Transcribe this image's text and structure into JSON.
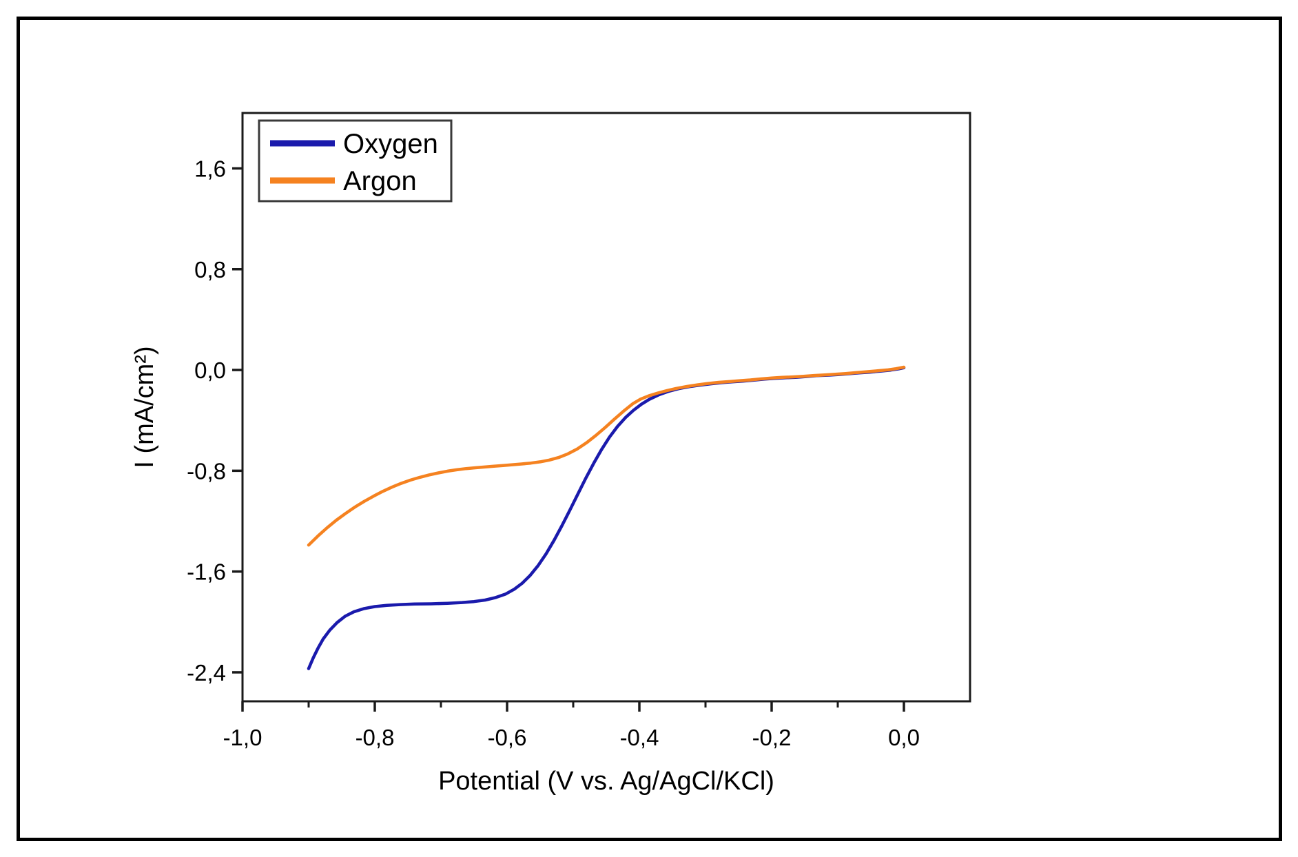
{
  "figure": {
    "background_color": "#ffffff",
    "border_color": "#000000",
    "frame_color": "#1a1a1a",
    "text_color": "#000000",
    "legend_border_color": "#3a3a3a"
  },
  "chart_data": {
    "type": "line",
    "title": "",
    "xlabel": "Potential (V vs. Ag/AgCl/KCl)",
    "ylabel": "I (mA/cm²)",
    "xlim": [
      -1.0,
      0.1
    ],
    "ylim": [
      -2.63,
      2.04
    ],
    "grid": false,
    "decimal_separator": ",",
    "x_ticks": {
      "major": [
        -1.0,
        -0.8,
        -0.6,
        -0.4,
        -0.2,
        0.0
      ],
      "labels": [
        "-1,0",
        "-0,8",
        "-0,6",
        "-0,4",
        "-0,2",
        "0,0"
      ],
      "minor": [
        -0.9,
        -0.7,
        -0.5,
        -0.3,
        -0.1
      ]
    },
    "y_ticks": {
      "major": [
        1.6,
        0.8,
        0.0,
        -0.8,
        -1.6,
        -2.4
      ],
      "labels": [
        "1,6",
        "0,8",
        "0,0",
        "-0,8",
        "-1,6",
        "-2,4"
      ],
      "minor": []
    },
    "legend": {
      "position": "top-left",
      "entries": [
        {
          "label": "Oxygen",
          "color": "#1a1aac"
        },
        {
          "label": "Argon",
          "color": "#f58220"
        }
      ]
    },
    "series": [
      {
        "name": "Oxygen",
        "color": "#1a1aac",
        "points": [
          [
            -0.9,
            -2.37
          ],
          [
            -0.893,
            -2.285
          ],
          [
            -0.886,
            -2.21
          ],
          [
            -0.878,
            -2.135
          ],
          [
            -0.868,
            -2.065
          ],
          [
            -0.857,
            -2.005
          ],
          [
            -0.845,
            -1.955
          ],
          [
            -0.832,
            -1.92
          ],
          [
            -0.817,
            -1.895
          ],
          [
            -0.8,
            -1.878
          ],
          [
            -0.782,
            -1.868
          ],
          [
            -0.762,
            -1.862
          ],
          [
            -0.74,
            -1.858
          ],
          [
            -0.715,
            -1.856
          ],
          [
            -0.69,
            -1.852
          ],
          [
            -0.668,
            -1.846
          ],
          [
            -0.65,
            -1.838
          ],
          [
            -0.633,
            -1.826
          ],
          [
            -0.617,
            -1.806
          ],
          [
            -0.602,
            -1.778
          ],
          [
            -0.589,
            -1.74
          ],
          [
            -0.577,
            -1.692
          ],
          [
            -0.565,
            -1.63
          ],
          [
            -0.553,
            -1.552
          ],
          [
            -0.541,
            -1.46
          ],
          [
            -0.529,
            -1.352
          ],
          [
            -0.517,
            -1.235
          ],
          [
            -0.505,
            -1.112
          ],
          [
            -0.493,
            -0.985
          ],
          [
            -0.481,
            -0.86
          ],
          [
            -0.469,
            -0.74
          ],
          [
            -0.457,
            -0.63
          ],
          [
            -0.445,
            -0.532
          ],
          [
            -0.433,
            -0.448
          ],
          [
            -0.421,
            -0.378
          ],
          [
            -0.409,
            -0.32
          ],
          [
            -0.397,
            -0.272
          ],
          [
            -0.385,
            -0.233
          ],
          [
            -0.37,
            -0.196
          ],
          [
            -0.355,
            -0.168
          ],
          [
            -0.34,
            -0.148
          ],
          [
            -0.324,
            -0.132
          ],
          [
            -0.308,
            -0.12
          ],
          [
            -0.292,
            -0.11
          ],
          [
            -0.276,
            -0.101
          ],
          [
            -0.26,
            -0.094
          ],
          [
            -0.244,
            -0.089
          ],
          [
            -0.228,
            -0.081
          ],
          [
            -0.212,
            -0.073
          ],
          [
            -0.196,
            -0.067
          ],
          [
            -0.18,
            -0.062
          ],
          [
            -0.164,
            -0.058
          ],
          [
            -0.148,
            -0.052
          ],
          [
            -0.132,
            -0.045
          ],
          [
            -0.116,
            -0.041
          ],
          [
            -0.1,
            -0.037
          ],
          [
            -0.084,
            -0.03
          ],
          [
            -0.068,
            -0.023
          ],
          [
            -0.052,
            -0.017
          ],
          [
            -0.036,
            -0.009
          ],
          [
            -0.02,
            -0.001
          ],
          [
            -0.008,
            0.009
          ],
          [
            0.0,
            0.018
          ]
        ]
      },
      {
        "name": "Argon",
        "color": "#f58220",
        "points": [
          [
            -0.9,
            -1.39
          ],
          [
            -0.886,
            -1.318
          ],
          [
            -0.872,
            -1.252
          ],
          [
            -0.858,
            -1.192
          ],
          [
            -0.844,
            -1.138
          ],
          [
            -0.83,
            -1.088
          ],
          [
            -0.816,
            -1.043
          ],
          [
            -0.802,
            -1.002
          ],
          [
            -0.788,
            -0.964
          ],
          [
            -0.774,
            -0.93
          ],
          [
            -0.76,
            -0.9
          ],
          [
            -0.746,
            -0.874
          ],
          [
            -0.732,
            -0.852
          ],
          [
            -0.718,
            -0.833
          ],
          [
            -0.704,
            -0.817
          ],
          [
            -0.69,
            -0.803
          ],
          [
            -0.676,
            -0.792
          ],
          [
            -0.662,
            -0.783
          ],
          [
            -0.648,
            -0.776
          ],
          [
            -0.634,
            -0.77
          ],
          [
            -0.62,
            -0.764
          ],
          [
            -0.606,
            -0.758
          ],
          [
            -0.592,
            -0.752
          ],
          [
            -0.578,
            -0.746
          ],
          [
            -0.564,
            -0.739
          ],
          [
            -0.55,
            -0.729
          ],
          [
            -0.536,
            -0.715
          ],
          [
            -0.522,
            -0.695
          ],
          [
            -0.508,
            -0.666
          ],
          [
            -0.494,
            -0.627
          ],
          [
            -0.48,
            -0.578
          ],
          [
            -0.466,
            -0.521
          ],
          [
            -0.452,
            -0.458
          ],
          [
            -0.438,
            -0.392
          ],
          [
            -0.424,
            -0.327
          ],
          [
            -0.41,
            -0.268
          ],
          [
            -0.398,
            -0.231
          ],
          [
            -0.386,
            -0.206
          ],
          [
            -0.372,
            -0.183
          ],
          [
            -0.358,
            -0.163
          ],
          [
            -0.344,
            -0.146
          ],
          [
            -0.328,
            -0.131
          ],
          [
            -0.312,
            -0.118
          ],
          [
            -0.296,
            -0.107
          ],
          [
            -0.28,
            -0.098
          ],
          [
            -0.264,
            -0.092
          ],
          [
            -0.248,
            -0.085
          ],
          [
            -0.232,
            -0.079
          ],
          [
            -0.216,
            -0.071
          ],
          [
            -0.2,
            -0.064
          ],
          [
            -0.184,
            -0.059
          ],
          [
            -0.168,
            -0.055
          ],
          [
            -0.152,
            -0.05
          ],
          [
            -0.136,
            -0.044
          ],
          [
            -0.12,
            -0.039
          ],
          [
            -0.104,
            -0.034
          ],
          [
            -0.088,
            -0.028
          ],
          [
            -0.072,
            -0.021
          ],
          [
            -0.056,
            -0.014
          ],
          [
            -0.04,
            -0.007
          ],
          [
            -0.024,
            0.001
          ],
          [
            -0.012,
            0.01
          ],
          [
            0.0,
            0.022
          ]
        ]
      }
    ]
  }
}
